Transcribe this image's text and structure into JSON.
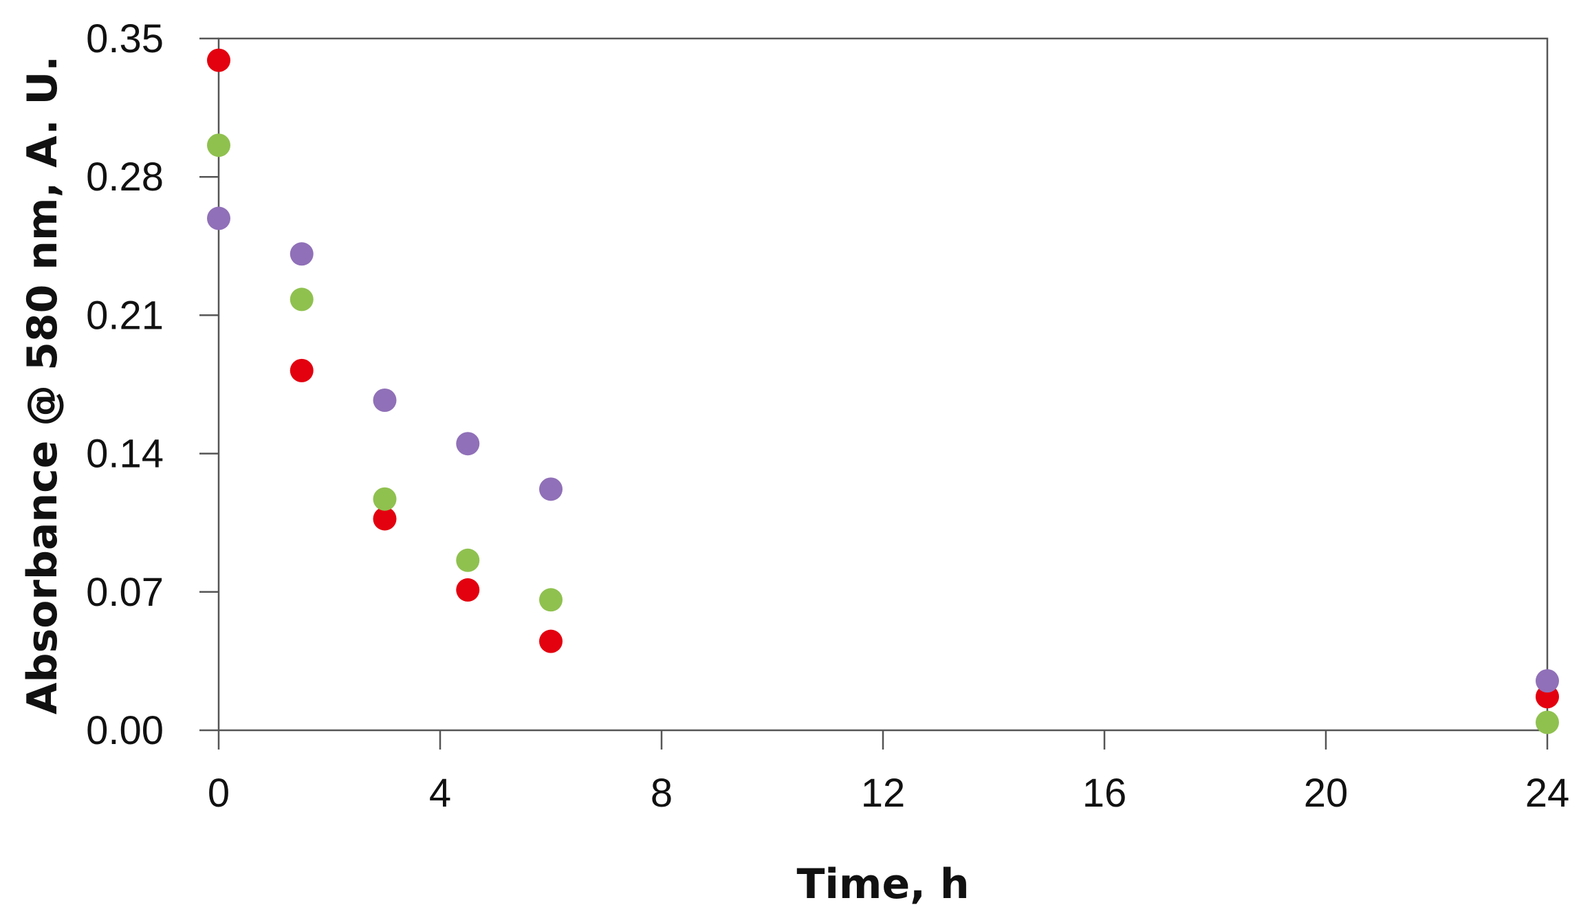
{
  "chart_data": {
    "type": "scatter",
    "title": "",
    "xlabel": "Time, h",
    "ylabel": "Absorbance @ 580 nm, A. U.",
    "xlim": [
      0,
      24
    ],
    "ylim": [
      0,
      0.35
    ],
    "xticks": [
      0,
      4,
      8,
      12,
      16,
      20,
      24
    ],
    "xtick_labels": [
      "0",
      "4",
      "8",
      "12",
      "16",
      "20",
      "24"
    ],
    "yticks": [
      0,
      0.07,
      0.14,
      0.21,
      0.28,
      0.35
    ],
    "ytick_labels": [
      "0.00",
      "0.07",
      "0.14",
      "0.21",
      "0.28",
      "0.35"
    ],
    "grid": false,
    "legend": "none",
    "series": [
      {
        "color": "#e3000f",
        "points": [
          [
            0,
            0.339
          ],
          [
            1.5,
            0.182
          ],
          [
            3,
            0.107
          ],
          [
            4.5,
            0.071
          ],
          [
            6,
            0.045
          ],
          [
            24,
            0.017
          ]
        ]
      },
      {
        "color": "#8fc14f",
        "points": [
          [
            0,
            0.296
          ],
          [
            1.5,
            0.218
          ],
          [
            3,
            0.117
          ],
          [
            4.5,
            0.086
          ],
          [
            6,
            0.066
          ],
          [
            24,
            0.004
          ]
        ]
      },
      {
        "color": "#9070b8",
        "points": [
          [
            0,
            0.259
          ],
          [
            1.5,
            0.241
          ],
          [
            3,
            0.167
          ],
          [
            4.5,
            0.145
          ],
          [
            6,
            0.122
          ],
          [
            24,
            0.025
          ]
        ]
      }
    ]
  }
}
